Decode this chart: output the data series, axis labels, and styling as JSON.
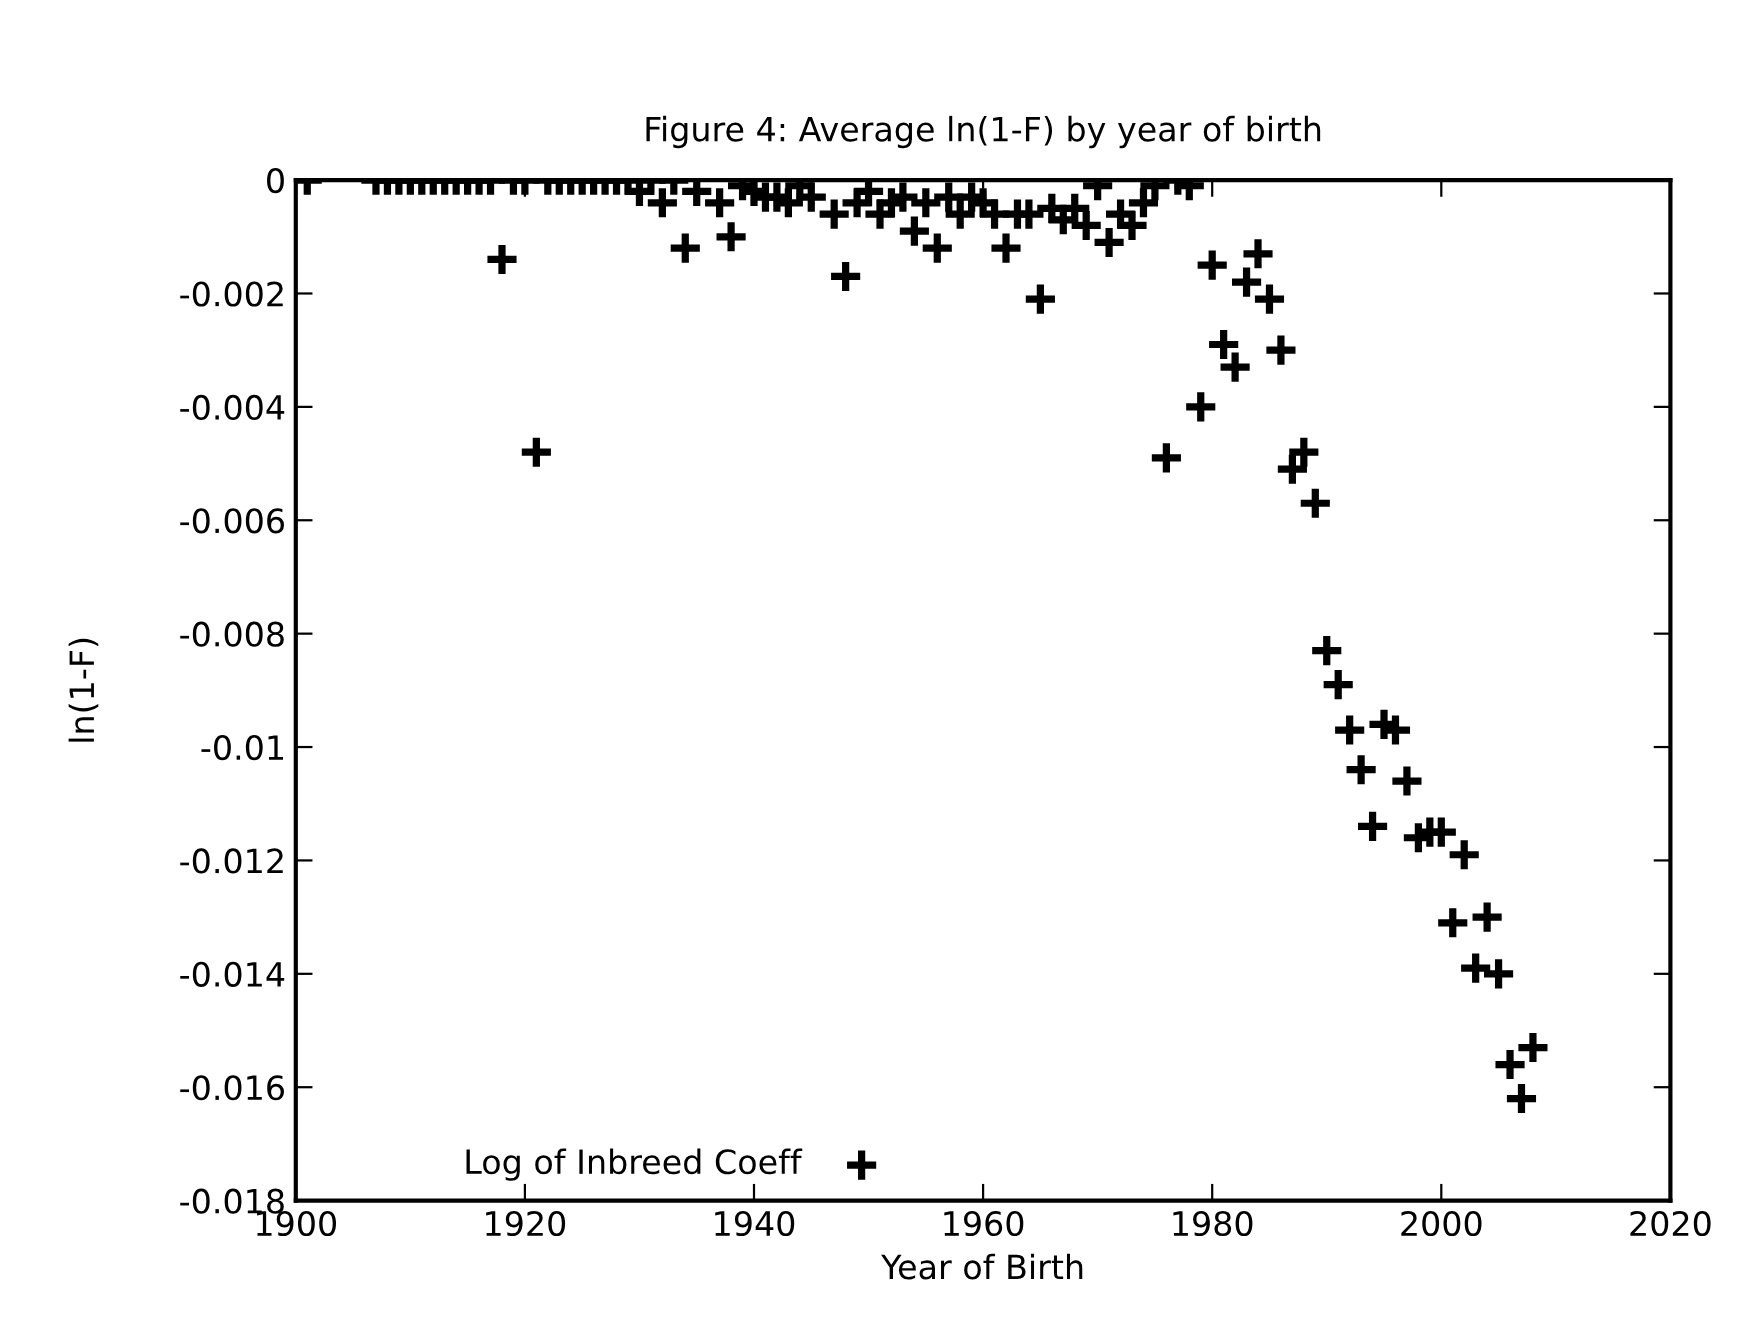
{
  "chart_data": {
    "type": "scatter",
    "title": "Figure 4: Average ln(1-F) by year of birth",
    "xlabel": "Year of Birth",
    "ylabel": "ln(1-F)",
    "xlim": [
      1900,
      2020
    ],
    "xticks": [
      1900,
      1920,
      1940,
      1960,
      1980,
      2000,
      2020
    ],
    "ylim": [
      -0.018,
      0
    ],
    "yticks": [
      -0.018,
      -0.016,
      -0.014,
      -0.012,
      -0.01,
      -0.008,
      -0.006,
      -0.004,
      -0.002,
      0
    ],
    "grid": false,
    "legend": "bottom left",
    "marker": "cross",
    "series": [
      {
        "name": "Log of Inbreed Coeff",
        "color": "#000000",
        "x": [
          1901,
          1907,
          1908,
          1909,
          1910,
          1911,
          1912,
          1913,
          1914,
          1915,
          1916,
          1917,
          1918,
          1919,
          1920,
          1921,
          1922,
          1923,
          1924,
          1925,
          1926,
          1927,
          1928,
          1929,
          1930,
          1931,
          1932,
          1933,
          1934,
          1935,
          1937,
          1938,
          1939,
          1940,
          1941,
          1942,
          1943,
          1944,
          1945,
          1947,
          1948,
          1949,
          1950,
          1951,
          1952,
          1953,
          1954,
          1955,
          1956,
          1957,
          1958,
          1959,
          1960,
          1961,
          1962,
          1963,
          1964,
          1965,
          1966,
          1967,
          1968,
          1969,
          1970,
          1971,
          1972,
          1973,
          1974,
          1975,
          1976,
          1977,
          1978,
          1979,
          1980,
          1981,
          1982,
          1983,
          1984,
          1985,
          1986,
          1987,
          1988,
          1989,
          1990,
          1991,
          1992,
          1993,
          1994,
          1995,
          1996,
          1997,
          1998,
          1999,
          2000,
          2001,
          2002,
          2003,
          2004,
          2005,
          2006,
          2007,
          2008
        ],
        "values": [
          0,
          0,
          0,
          0,
          0,
          0,
          0,
          0,
          0,
          0,
          0,
          0,
          -0.0014,
          0,
          0,
          -0.0048,
          0,
          0,
          0,
          0,
          0,
          0,
          0,
          0,
          -0.0002,
          0,
          -0.0004,
          0,
          -0.0012,
          -0.0002,
          -0.0004,
          -0.001,
          -0.0001,
          -0.0002,
          -0.0003,
          -0.0003,
          -0.0004,
          -0.0001,
          -0.0003,
          -0.0006,
          -0.0017,
          -0.0004,
          -0.0002,
          -0.0006,
          -0.0004,
          -0.0003,
          -0.0009,
          -0.0004,
          -0.0012,
          -0.0003,
          -0.0006,
          -0.0003,
          -0.0004,
          -0.0006,
          -0.0012,
          -0.0006,
          -0.0006,
          -0.0021,
          -0.0005,
          -0.0007,
          -0.0005,
          -0.0008,
          -0.0001,
          -0.0011,
          -0.0006,
          -0.0008,
          -0.0004,
          -0.0001,
          -0.0049,
          0,
          -0.0001,
          -0.004,
          -0.0015,
          -0.0029,
          -0.0033,
          -0.0018,
          -0.0013,
          -0.0021,
          -0.003,
          -0.0051,
          -0.0048,
          -0.0057,
          -0.0083,
          -0.0089,
          -0.0097,
          -0.0104,
          -0.0114,
          -0.0096,
          -0.0097,
          -0.0106,
          -0.0116,
          -0.0115,
          -0.0115,
          -0.0131,
          -0.0119,
          -0.0139,
          -0.013,
          -0.014,
          -0.0156,
          -0.0162,
          -0.0153
        ]
      }
    ]
  }
}
